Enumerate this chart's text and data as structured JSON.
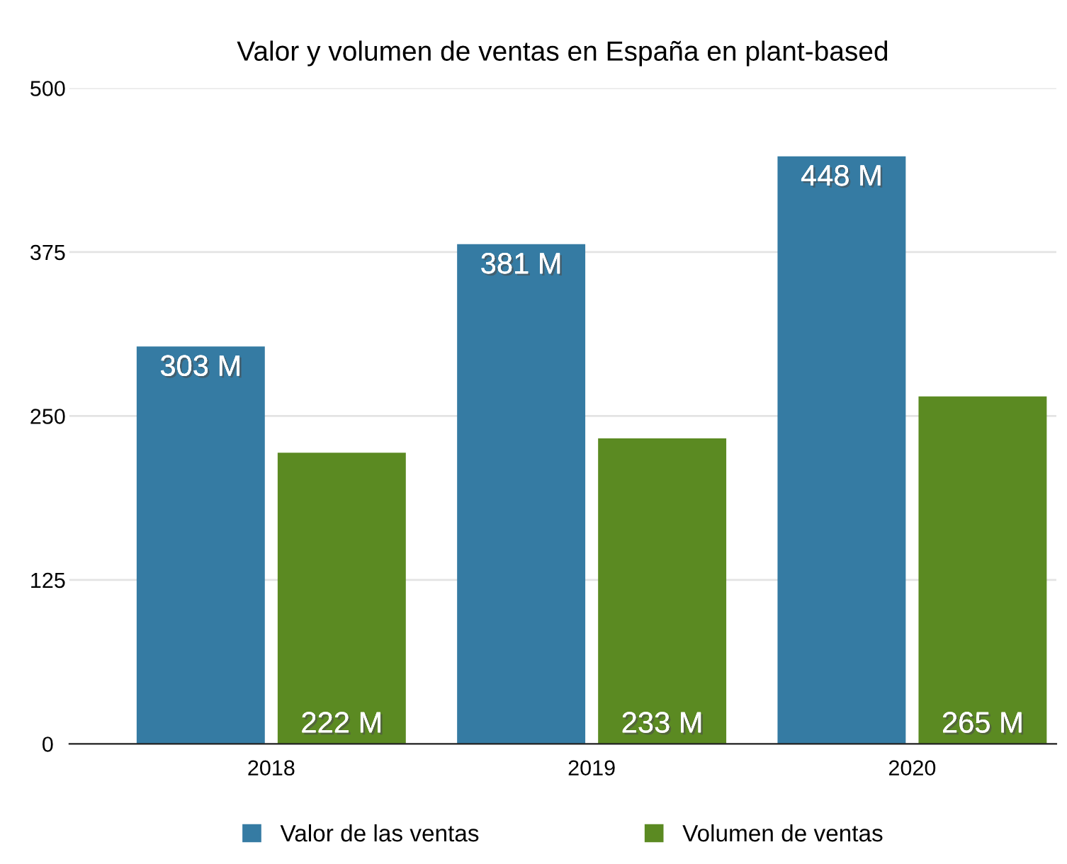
{
  "chart_data": {
    "type": "bar",
    "title": "Valor y volumen de ventas en España en plant-based",
    "categories": [
      "2018",
      "2019",
      "2020"
    ],
    "series": [
      {
        "name": "Valor de las ventas",
        "color": "#357ba3",
        "values": [
          303,
          381,
          448
        ],
        "value_labels": [
          "303 M",
          "381 M",
          "448 M"
        ]
      },
      {
        "name": "Volumen de ventas",
        "color": "#5b8a22",
        "values": [
          222,
          233,
          265
        ],
        "value_labels": [
          "222 M",
          "233 M",
          "265 M"
        ]
      }
    ],
    "ylim": [
      0,
      500
    ],
    "yticks": [
      0,
      125,
      250,
      375,
      500
    ],
    "grid": "y",
    "legend": "bottom"
  }
}
